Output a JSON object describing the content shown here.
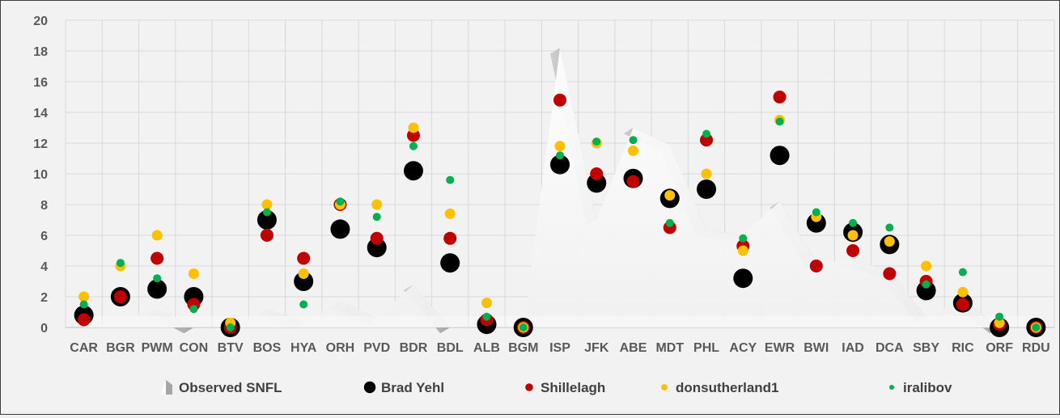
{
  "chart_data": {
    "type": "scatter",
    "title": "",
    "xlabel": "",
    "ylabel": "",
    "ylim": [
      0,
      20
    ],
    "yticks": [
      "0",
      "2",
      "4",
      "6",
      "8",
      "10",
      "12",
      "14",
      "16",
      "18",
      "20"
    ],
    "grid": true,
    "legend_position": "bottom",
    "categories": [
      "CAR",
      "BGR",
      "PWM",
      "CON",
      "BTV",
      "BOS",
      "HYA",
      "ORH",
      "PVD",
      "BDR",
      "BDL",
      "ALB",
      "BGM",
      "ISP",
      "JFK",
      "ABE",
      "MDT",
      "PHL",
      "ACY",
      "EWR",
      "BWI",
      "IAD",
      "DCA",
      "SBY",
      "RIC",
      "ORF",
      "RDU"
    ],
    "series": [
      {
        "name": "Observed SNFL",
        "style": "area",
        "color": "#ffffff",
        "values": [
          0,
          0.6,
          1.2,
          0,
          0,
          1.2,
          0.4,
          1.7,
          0.6,
          2.8,
          0,
          0,
          0,
          18.2,
          7.0,
          13.0,
          11.9,
          6.3,
          6.0,
          8.2,
          4.2,
          4.4,
          3.7,
          0.6,
          1.9,
          0,
          0
        ]
      },
      {
        "name": "Brad Yehl",
        "style": "marker-large",
        "color": "#000000",
        "values": [
          0.8,
          2.0,
          2.5,
          2.0,
          0,
          7.0,
          3.0,
          6.4,
          5.2,
          10.2,
          4.2,
          0.2,
          0,
          10.6,
          9.4,
          9.7,
          8.4,
          9.0,
          3.2,
          11.2,
          6.8,
          6.2,
          5.4,
          2.4,
          1.6,
          0,
          0
        ]
      },
      {
        "name": "Shillelagh",
        "style": "marker-medium",
        "color": "#c00000",
        "values": [
          0.5,
          2.0,
          4.5,
          1.5,
          0,
          6.0,
          4.5,
          8.0,
          5.8,
          12.5,
          5.8,
          0.5,
          0,
          14.8,
          10.0,
          9.5,
          6.5,
          12.2,
          5.3,
          15.0,
          4.0,
          5.0,
          3.5,
          3.0,
          1.5,
          0.2,
          0
        ]
      },
      {
        "name": "donsutherland1",
        "style": "marker-small",
        "color": "#ffc000",
        "values": [
          2.0,
          4.0,
          6.0,
          3.5,
          0.3,
          8.0,
          3.5,
          8.0,
          8.0,
          13.0,
          7.4,
          1.6,
          0,
          11.8,
          12.0,
          11.5,
          8.6,
          10.0,
          5.0,
          13.5,
          7.2,
          6.0,
          5.6,
          4.0,
          2.3,
          0.3,
          0
        ]
      },
      {
        "name": "iralibov",
        "style": "marker-tiny",
        "color": "#00b050",
        "values": [
          1.5,
          4.2,
          3.2,
          1.2,
          0,
          7.5,
          1.5,
          8.2,
          7.2,
          11.8,
          9.6,
          0.7,
          0,
          11.2,
          12.1,
          12.2,
          6.8,
          12.6,
          5.8,
          13.4,
          7.5,
          6.8,
          6.5,
          2.8,
          3.6,
          0.7,
          0
        ]
      }
    ]
  }
}
